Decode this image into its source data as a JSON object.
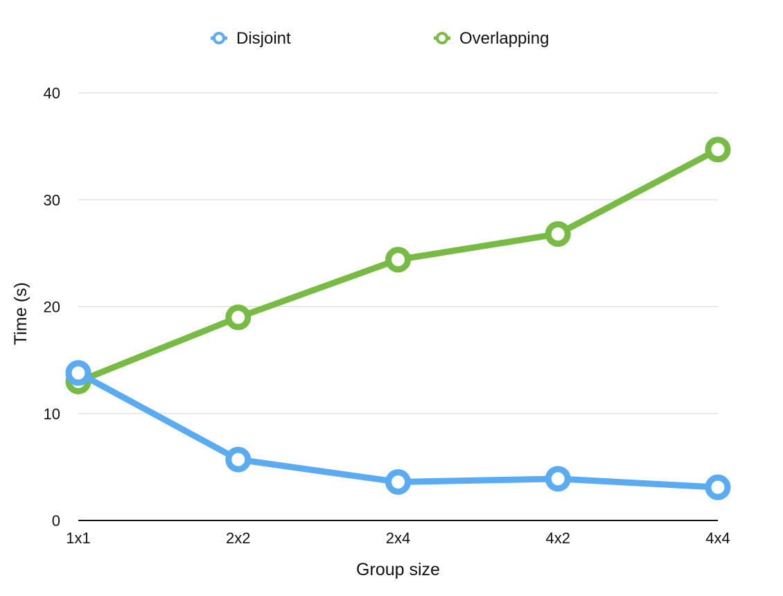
{
  "chart_data": {
    "type": "line",
    "title": "",
    "xlabel": "Group size",
    "ylabel": "Time (s)",
    "categories": [
      "1x1",
      "2x2",
      "2x4",
      "4x2",
      "4x4"
    ],
    "ylim": [
      0,
      40
    ],
    "yticks": [
      0,
      10,
      20,
      30,
      40
    ],
    "grid": true,
    "legend_position": "top",
    "series": [
      {
        "name": "Disjoint",
        "color": "#5aabf2",
        "values": [
          13.8,
          5.7,
          3.6,
          3.9,
          3.1
        ]
      },
      {
        "name": "Overlapping",
        "color": "#77bb44",
        "values": [
          13.0,
          19.0,
          24.4,
          26.8,
          34.7
        ]
      }
    ]
  }
}
